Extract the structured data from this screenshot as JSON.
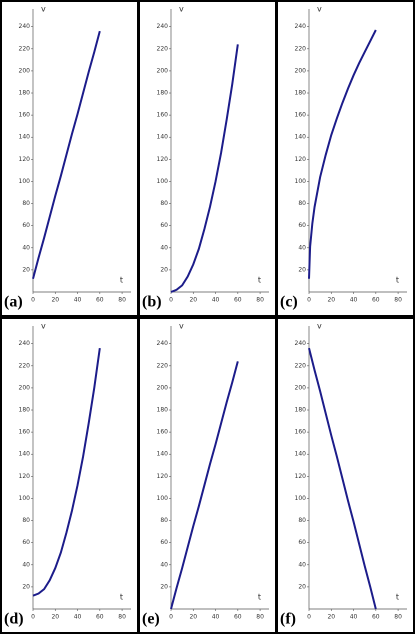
{
  "chart_data": [
    {
      "type": "line",
      "label": "(a)",
      "xlabel": "t",
      "ylabel": "v",
      "xlim": [
        0,
        88
      ],
      "ylim": [
        0,
        256
      ],
      "xticks": [
        0,
        20,
        40,
        60,
        80
      ],
      "yticks": [
        20,
        40,
        60,
        80,
        100,
        120,
        140,
        160,
        180,
        200,
        220,
        240
      ],
      "color": "#1c1c8a",
      "x": [
        0,
        5,
        10,
        15,
        20,
        25,
        30,
        35,
        40,
        45,
        50,
        55,
        60
      ],
      "values": [
        12,
        31,
        49,
        68,
        87,
        105,
        124,
        143,
        161,
        180,
        199,
        217,
        236
      ]
    },
    {
      "type": "line",
      "label": "(b)",
      "xlabel": "t",
      "ylabel": "v",
      "xlim": [
        0,
        88
      ],
      "ylim": [
        0,
        256
      ],
      "xticks": [
        0,
        20,
        40,
        60,
        80
      ],
      "yticks": [
        20,
        40,
        60,
        80,
        100,
        120,
        140,
        160,
        180,
        200,
        220,
        240
      ],
      "color": "#1c1c8a",
      "x": [
        0,
        5,
        10,
        15,
        20,
        25,
        30,
        35,
        40,
        45,
        50,
        55,
        60
      ],
      "values": [
        0,
        2,
        6,
        14,
        25,
        39,
        57,
        77,
        100,
        126,
        156,
        188,
        224
      ]
    },
    {
      "type": "line",
      "label": "(c)",
      "xlabel": "t",
      "ylabel": "v",
      "xlim": [
        0,
        88
      ],
      "ylim": [
        0,
        256
      ],
      "xticks": [
        0,
        20,
        40,
        60,
        80
      ],
      "yticks": [
        20,
        40,
        60,
        80,
        100,
        120,
        140,
        160,
        180,
        200,
        220,
        240
      ],
      "color": "#1c1c8a",
      "x": [
        0,
        1,
        3,
        5,
        10,
        15,
        20,
        25,
        30,
        35,
        40,
        45,
        50,
        55,
        60
      ],
      "values": [
        12,
        41,
        62,
        77,
        104,
        124,
        142,
        157,
        171,
        184,
        196,
        207,
        217,
        227,
        237
      ]
    },
    {
      "type": "line",
      "label": "(d)",
      "xlabel": "t",
      "ylabel": "v",
      "xlim": [
        0,
        88
      ],
      "ylim": [
        0,
        256
      ],
      "xticks": [
        0,
        20,
        40,
        60,
        80
      ],
      "yticks": [
        20,
        40,
        60,
        80,
        100,
        120,
        140,
        160,
        180,
        200,
        220,
        240
      ],
      "color": "#1c1c8a",
      "x": [
        0,
        5,
        10,
        15,
        20,
        25,
        30,
        35,
        40,
        45,
        50,
        55,
        60
      ],
      "values": [
        12,
        14,
        18,
        26,
        37,
        51,
        69,
        89,
        112,
        138,
        168,
        200,
        236
      ]
    },
    {
      "type": "line",
      "label": "(e)",
      "xlabel": "t",
      "ylabel": "v",
      "xlim": [
        0,
        88
      ],
      "ylim": [
        0,
        256
      ],
      "xticks": [
        0,
        20,
        40,
        60,
        80
      ],
      "yticks": [
        20,
        40,
        60,
        80,
        100,
        120,
        140,
        160,
        180,
        200,
        220,
        240
      ],
      "color": "#1c1c8a",
      "x": [
        0,
        5,
        10,
        15,
        20,
        25,
        30,
        35,
        40,
        45,
        50,
        55,
        60
      ],
      "values": [
        0,
        19,
        37,
        56,
        75,
        93,
        112,
        131,
        149,
        168,
        187,
        205,
        224
      ]
    },
    {
      "type": "line",
      "label": "(f)",
      "xlabel": "t",
      "ylabel": "v",
      "xlim": [
        0,
        88
      ],
      "ylim": [
        0,
        256
      ],
      "xticks": [
        0,
        20,
        40,
        60,
        80
      ],
      "yticks": [
        20,
        40,
        60,
        80,
        100,
        120,
        140,
        160,
        180,
        200,
        220,
        240
      ],
      "color": "#1c1c8a",
      "x": [
        0,
        5,
        10,
        15,
        20,
        25,
        30,
        35,
        40,
        45,
        50,
        55,
        60
      ],
      "values": [
        236,
        216,
        197,
        177,
        157,
        138,
        118,
        98,
        79,
        59,
        39,
        20,
        0
      ]
    }
  ]
}
